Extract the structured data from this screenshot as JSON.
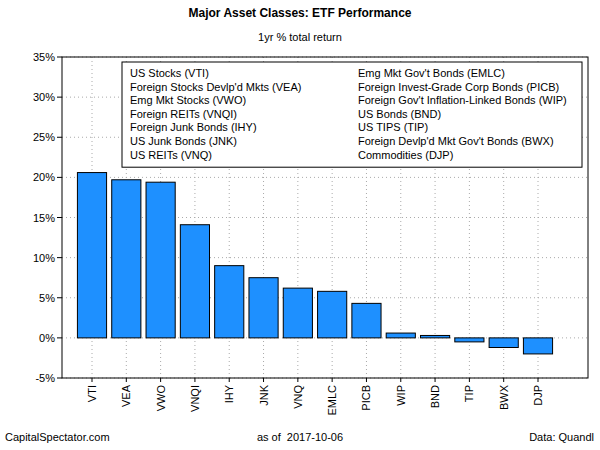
{
  "chart_data": {
    "type": "bar",
    "title": "Major Asset Classes: ETF Performance",
    "subtitle": "1yr % total return",
    "categories": [
      "VTI",
      "VEA",
      "VWO",
      "VNQI",
      "IHY",
      "JNK",
      "VNQ",
      "EMLC",
      "PICB",
      "WIP",
      "BND",
      "TIP",
      "BWX",
      "DJP"
    ],
    "values": [
      20.6,
      19.7,
      19.4,
      14.1,
      9.0,
      7.5,
      6.2,
      5.8,
      4.3,
      0.6,
      0.3,
      -0.5,
      -1.2,
      -2.0
    ],
    "color": "#1e90ff",
    "ylim": [
      -5,
      35
    ],
    "yticks": [
      {
        "value": -5,
        "label": "-5%"
      },
      {
        "value": 0,
        "label": "0%"
      },
      {
        "value": 5,
        "label": "5%"
      },
      {
        "value": 10,
        "label": "10%"
      },
      {
        "value": 15,
        "label": "15%"
      },
      {
        "value": 20,
        "label": "20%"
      },
      {
        "value": 25,
        "label": "25%"
      },
      {
        "value": 30,
        "label": "30%"
      },
      {
        "value": 35,
        "label": "35%"
      }
    ],
    "grid": true,
    "annotations": [
      "US Stocks (VTI)",
      "Foreign Stocks Devlp'd Mkts (VEA)",
      "Emg Mkt Stocks (VWO)",
      "Foreign REITs (VNQI)",
      "Foreign Junk Bonds (IHY)",
      "US Junk Bonds (JNK)",
      "US REITs (VNQ)",
      "Emg Mkt Gov't Bonds (EMLC)",
      "Foreign Invest-Grade Corp Bonds (PICB)",
      "Foreign Gov't Inflation-Linked Bonds (WIP)",
      "US Bonds (BND)",
      "US TIPS (TIP)",
      "Foreign Devlp'd Mkt Gov't Bonds (BWX)",
      "Commodities (DJP)"
    ],
    "footer": [
      "CapitalSpectator.com",
      "as of  2017-10-06",
      "Data: Quandl"
    ]
  }
}
